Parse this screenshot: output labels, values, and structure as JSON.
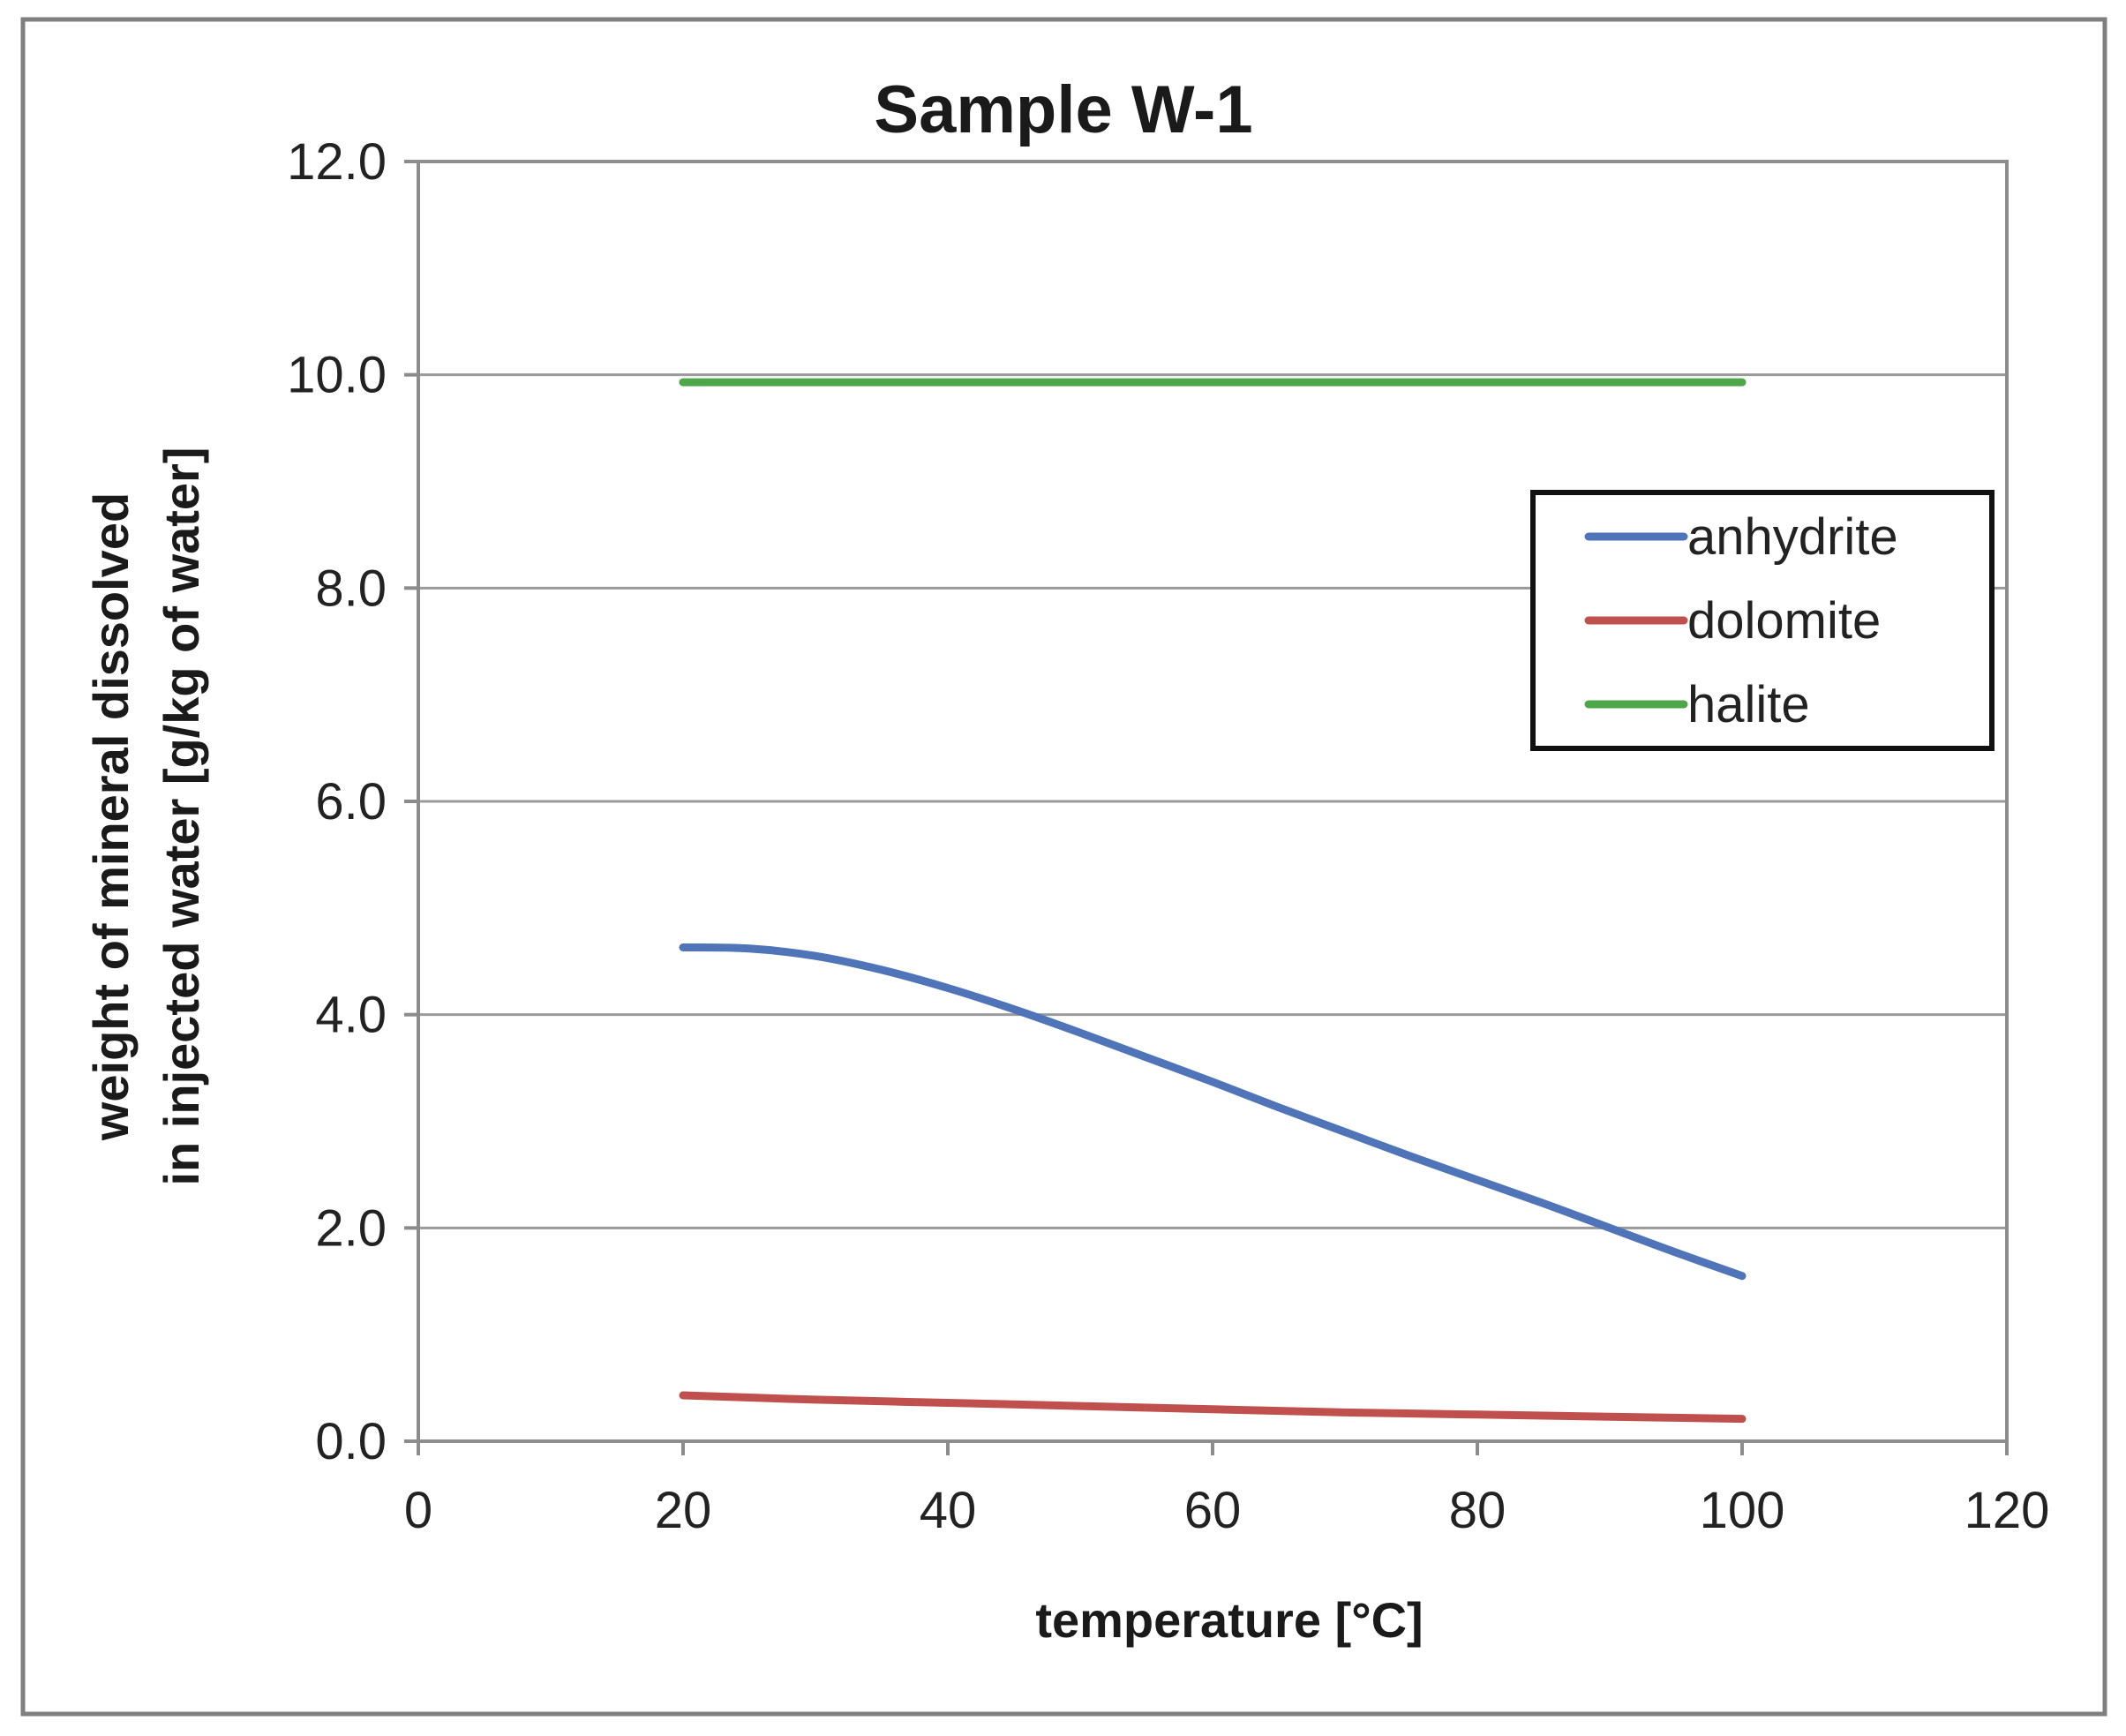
{
  "chart_data": {
    "type": "line",
    "title": "Sample W-1",
    "xlabel": "temperature [°C]",
    "ylabel_line1": "weight of mineral dissolved",
    "ylabel_line2": "in injected water [g/kg of water]",
    "xlim": [
      0,
      120
    ],
    "ylim": [
      0,
      12
    ],
    "x_ticks": [
      0,
      20,
      40,
      60,
      80,
      100,
      120
    ],
    "x_tick_labels": [
      "0",
      "20",
      "40",
      "60",
      "80",
      "100",
      "120"
    ],
    "y_ticks": [
      0,
      2,
      4,
      6,
      8,
      10,
      12
    ],
    "y_tick_labels": [
      "0.0",
      "2.0",
      "4.0",
      "6.0",
      "8.0",
      "10.0",
      "12.0"
    ],
    "grid": "horizontal",
    "legend_position": "right",
    "series": [
      {
        "name": "anhydrite",
        "color": "#4f74b8",
        "x": [
          20,
          25,
          30,
          35,
          40,
          45,
          50,
          55,
          60,
          65,
          70,
          75,
          80,
          85,
          90,
          95,
          100
        ],
        "y": [
          4.63,
          4.62,
          4.55,
          4.42,
          4.25,
          4.05,
          3.83,
          3.6,
          3.37,
          3.13,
          2.9,
          2.67,
          2.45,
          2.23,
          2.0,
          1.77,
          1.55
        ]
      },
      {
        "name": "dolomite",
        "color": "#c0504d",
        "x": [
          20,
          30,
          40,
          50,
          60,
          70,
          80,
          90,
          100
        ],
        "y": [
          0.43,
          0.39,
          0.36,
          0.33,
          0.3,
          0.27,
          0.25,
          0.23,
          0.21
        ]
      },
      {
        "name": "halite",
        "color": "#4ea64a",
        "x": [
          20,
          40,
          60,
          80,
          100
        ],
        "y": [
          9.93,
          9.93,
          9.93,
          9.93,
          9.93
        ]
      }
    ]
  }
}
